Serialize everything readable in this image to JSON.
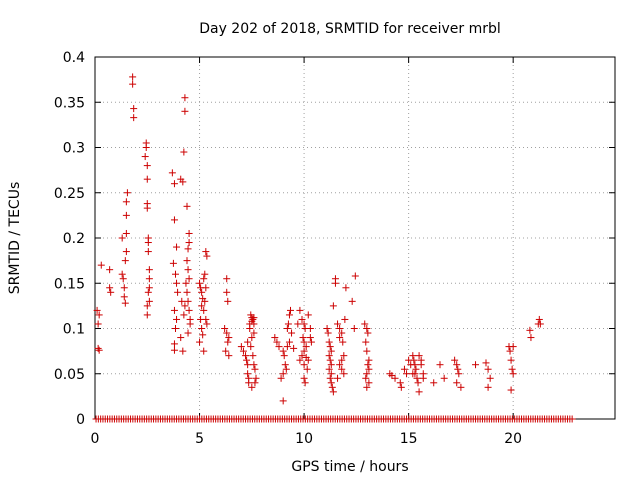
{
  "chart_data": {
    "type": "scatter",
    "title": "Day 202 of 2018, SRMTID for receiver mrbl",
    "xlabel": "GPS time / hours",
    "ylabel": "SRMTID / TECUs",
    "xlim": [
      0,
      24.87
    ],
    "ylim": [
      0,
      0.4
    ],
    "xticks": [
      0,
      5,
      10,
      15,
      20
    ],
    "xtick_labels": [
      "0",
      "5",
      "10",
      "15",
      "20"
    ],
    "yticks": [
      0,
      0.05,
      0.1,
      0.15,
      0.2,
      0.25,
      0.3,
      0.35,
      0.4
    ],
    "ytick_labels": [
      "0",
      "0.05",
      "0.1",
      "0.15",
      "0.2",
      "0.25",
      "0.3",
      "0.35",
      "0.4"
    ],
    "grid": true,
    "marker": "+",
    "color": "#cc0000",
    "series": [
      {
        "name": "SRMTID",
        "points": [
          [
            0.1,
            0.12
          ],
          [
            0.15,
            0.105
          ],
          [
            0.2,
            0.115
          ],
          [
            0.15,
            0.078
          ],
          [
            0.2,
            0.076
          ],
          [
            0.3,
            0.17
          ],
          [
            0.7,
            0.165
          ],
          [
            0.7,
            0.145
          ],
          [
            0.75,
            0.14
          ],
          [
            1.3,
            0.2
          ],
          [
            1.3,
            0.16
          ],
          [
            1.35,
            0.155
          ],
          [
            1.4,
            0.145
          ],
          [
            1.4,
            0.135
          ],
          [
            1.45,
            0.128
          ],
          [
            1.45,
            0.175
          ],
          [
            1.5,
            0.185
          ],
          [
            1.5,
            0.205
          ],
          [
            1.5,
            0.225
          ],
          [
            1.5,
            0.24
          ],
          [
            1.55,
            0.25
          ],
          [
            1.8,
            0.378
          ],
          [
            1.8,
            0.37
          ],
          [
            1.85,
            0.343
          ],
          [
            1.85,
            0.333
          ],
          [
            2.4,
            0.29
          ],
          [
            2.45,
            0.3
          ],
          [
            2.45,
            0.305
          ],
          [
            2.5,
            0.28
          ],
          [
            2.5,
            0.265
          ],
          [
            2.5,
            0.238
          ],
          [
            2.5,
            0.233
          ],
          [
            2.55,
            0.2
          ],
          [
            2.55,
            0.195
          ],
          [
            2.55,
            0.185
          ],
          [
            2.6,
            0.165
          ],
          [
            2.6,
            0.155
          ],
          [
            2.6,
            0.145
          ],
          [
            2.55,
            0.14
          ],
          [
            2.5,
            0.125
          ],
          [
            2.5,
            0.115
          ],
          [
            2.6,
            0.13
          ],
          [
            3.7,
            0.272
          ],
          [
            3.8,
            0.26
          ],
          [
            3.8,
            0.22
          ],
          [
            3.9,
            0.19
          ],
          [
            3.75,
            0.172
          ],
          [
            3.85,
            0.16
          ],
          [
            3.9,
            0.15
          ],
          [
            3.95,
            0.14
          ],
          [
            3.8,
            0.12
          ],
          [
            3.9,
            0.11
          ],
          [
            3.85,
            0.1
          ],
          [
            3.8,
            0.083
          ],
          [
            3.8,
            0.076
          ],
          [
            4.1,
            0.265
          ],
          [
            4.15,
            0.13
          ],
          [
            4.1,
            0.09
          ],
          [
            4.2,
            0.075
          ],
          [
            4.3,
            0.355
          ],
          [
            4.3,
            0.34
          ],
          [
            4.25,
            0.295
          ],
          [
            4.2,
            0.262
          ],
          [
            4.4,
            0.235
          ],
          [
            4.5,
            0.205
          ],
          [
            4.5,
            0.195
          ],
          [
            4.45,
            0.188
          ],
          [
            4.4,
            0.175
          ],
          [
            4.45,
            0.165
          ],
          [
            4.5,
            0.155
          ],
          [
            4.35,
            0.15
          ],
          [
            4.4,
            0.14
          ],
          [
            4.45,
            0.13
          ],
          [
            4.5,
            0.12
          ],
          [
            4.55,
            0.11
          ],
          [
            4.55,
            0.105
          ],
          [
            4.45,
            0.095
          ],
          [
            4.3,
            0.125
          ],
          [
            4.25,
            0.115
          ],
          [
            5.0,
            0.15
          ],
          [
            5.05,
            0.145
          ],
          [
            5.1,
            0.14
          ],
          [
            5.15,
            0.133
          ],
          [
            5.1,
            0.125
          ],
          [
            5.2,
            0.12
          ],
          [
            5.05,
            0.11
          ],
          [
            5.1,
            0.1
          ],
          [
            5.15,
            0.093
          ],
          [
            5.0,
            0.085
          ],
          [
            5.2,
            0.155
          ],
          [
            5.25,
            0.16
          ],
          [
            5.3,
            0.185
          ],
          [
            5.35,
            0.18
          ],
          [
            5.3,
            0.145
          ],
          [
            5.25,
            0.13
          ],
          [
            5.3,
            0.11
          ],
          [
            5.35,
            0.105
          ],
          [
            5.2,
            0.075
          ],
          [
            6.3,
            0.155
          ],
          [
            6.3,
            0.14
          ],
          [
            6.35,
            0.13
          ],
          [
            6.2,
            0.1
          ],
          [
            6.3,
            0.095
          ],
          [
            6.4,
            0.09
          ],
          [
            6.35,
            0.085
          ],
          [
            6.25,
            0.075
          ],
          [
            6.4,
            0.07
          ],
          [
            7.0,
            0.08
          ],
          [
            7.1,
            0.075
          ],
          [
            7.2,
            0.07
          ],
          [
            7.25,
            0.065
          ],
          [
            7.3,
            0.06
          ],
          [
            7.3,
            0.05
          ],
          [
            7.35,
            0.045
          ],
          [
            7.35,
            0.04
          ],
          [
            7.3,
            0.085
          ],
          [
            7.4,
            0.105
          ],
          [
            7.4,
            0.1
          ],
          [
            7.45,
            0.115
          ],
          [
            7.5,
            0.112
          ],
          [
            7.55,
            0.11
          ],
          [
            7.5,
            0.108
          ],
          [
            7.6,
            0.105
          ],
          [
            7.6,
            0.095
          ],
          [
            7.5,
            0.09
          ],
          [
            7.45,
            0.08
          ],
          [
            7.55,
            0.07
          ],
          [
            7.6,
            0.06
          ],
          [
            7.65,
            0.055
          ],
          [
            7.7,
            0.045
          ],
          [
            7.65,
            0.04
          ],
          [
            7.5,
            0.035
          ],
          [
            7.6,
            0.112
          ],
          [
            8.6,
            0.09
          ],
          [
            8.7,
            0.085
          ],
          [
            8.8,
            0.08
          ],
          [
            9.0,
            0.075
          ],
          [
            9.05,
            0.07
          ],
          [
            9.1,
            0.06
          ],
          [
            9.15,
            0.055
          ],
          [
            9.0,
            0.05
          ],
          [
            8.9,
            0.045
          ],
          [
            9.0,
            0.02
          ],
          [
            9.2,
            0.1
          ],
          [
            9.25,
            0.105
          ],
          [
            9.3,
            0.115
          ],
          [
            9.35,
            0.12
          ],
          [
            9.4,
            0.095
          ],
          [
            9.3,
            0.085
          ],
          [
            9.2,
            0.08
          ],
          [
            9.5,
            0.078
          ],
          [
            9.8,
            0.12
          ],
          [
            9.9,
            0.11
          ],
          [
            10.0,
            0.105
          ],
          [
            10.05,
            0.1
          ],
          [
            9.95,
            0.09
          ],
          [
            10.0,
            0.085
          ],
          [
            10.1,
            0.08
          ],
          [
            10.0,
            0.075
          ],
          [
            9.9,
            0.07
          ],
          [
            10.1,
            0.068
          ],
          [
            10.2,
            0.065
          ],
          [
            10.0,
            0.06
          ],
          [
            10.15,
            0.055
          ],
          [
            10.0,
            0.045
          ],
          [
            10.05,
            0.04
          ],
          [
            10.3,
            0.1
          ],
          [
            10.3,
            0.09
          ],
          [
            10.35,
            0.085
          ],
          [
            10.2,
            0.115
          ],
          [
            9.7,
            0.105
          ],
          [
            9.8,
            0.065
          ],
          [
            11.1,
            0.1
          ],
          [
            11.15,
            0.095
          ],
          [
            11.2,
            0.085
          ],
          [
            11.25,
            0.08
          ],
          [
            11.3,
            0.075
          ],
          [
            11.2,
            0.07
          ],
          [
            11.25,
            0.065
          ],
          [
            11.3,
            0.06
          ],
          [
            11.2,
            0.055
          ],
          [
            11.3,
            0.05
          ],
          [
            11.25,
            0.045
          ],
          [
            11.3,
            0.04
          ],
          [
            11.35,
            0.035
          ],
          [
            11.4,
            0.03
          ],
          [
            11.5,
            0.155
          ],
          [
            11.5,
            0.15
          ],
          [
            11.4,
            0.125
          ],
          [
            11.6,
            0.105
          ],
          [
            11.7,
            0.1
          ],
          [
            11.8,
            0.095
          ],
          [
            11.85,
            0.085
          ],
          [
            11.9,
            0.07
          ],
          [
            11.8,
            0.065
          ],
          [
            11.7,
            0.06
          ],
          [
            11.8,
            0.055
          ],
          [
            11.9,
            0.05
          ],
          [
            11.6,
            0.045
          ],
          [
            11.7,
            0.09
          ],
          [
            11.95,
            0.11
          ],
          [
            12.0,
            0.145
          ],
          [
            12.3,
            0.13
          ],
          [
            12.45,
            0.158
          ],
          [
            12.4,
            0.1
          ],
          [
            12.9,
            0.105
          ],
          [
            13.0,
            0.1
          ],
          [
            13.05,
            0.095
          ],
          [
            12.95,
            0.085
          ],
          [
            13.0,
            0.075
          ],
          [
            13.1,
            0.065
          ],
          [
            13.05,
            0.06
          ],
          [
            13.1,
            0.055
          ],
          [
            13.0,
            0.05
          ],
          [
            12.95,
            0.045
          ],
          [
            13.1,
            0.04
          ],
          [
            13.0,
            0.035
          ],
          [
            14.1,
            0.05
          ],
          [
            14.2,
            0.048
          ],
          [
            14.35,
            0.045
          ],
          [
            14.6,
            0.04
          ],
          [
            14.65,
            0.035
          ],
          [
            14.8,
            0.055
          ],
          [
            14.9,
            0.05
          ],
          [
            15.0,
            0.065
          ],
          [
            15.1,
            0.06
          ],
          [
            15.2,
            0.07
          ],
          [
            15.25,
            0.065
          ],
          [
            15.3,
            0.06
          ],
          [
            15.35,
            0.055
          ],
          [
            15.3,
            0.05
          ],
          [
            15.4,
            0.045
          ],
          [
            15.45,
            0.04
          ],
          [
            15.2,
            0.05
          ],
          [
            15.5,
            0.07
          ],
          [
            15.6,
            0.065
          ],
          [
            15.6,
            0.06
          ],
          [
            15.7,
            0.05
          ],
          [
            15.7,
            0.045
          ],
          [
            15.5,
            0.03
          ],
          [
            16.2,
            0.04
          ],
          [
            16.5,
            0.06
          ],
          [
            16.7,
            0.045
          ],
          [
            17.2,
            0.065
          ],
          [
            17.3,
            0.06
          ],
          [
            17.35,
            0.055
          ],
          [
            17.4,
            0.05
          ],
          [
            17.3,
            0.04
          ],
          [
            17.5,
            0.035
          ],
          [
            18.2,
            0.06
          ],
          [
            18.7,
            0.062
          ],
          [
            18.8,
            0.055
          ],
          [
            18.9,
            0.045
          ],
          [
            18.8,
            0.035
          ],
          [
            19.8,
            0.08
          ],
          [
            19.85,
            0.075
          ],
          [
            19.9,
            0.065
          ],
          [
            19.95,
            0.055
          ],
          [
            20.0,
            0.05
          ],
          [
            19.9,
            0.032
          ],
          [
            20.0,
            0.08
          ],
          [
            20.8,
            0.098
          ],
          [
            20.85,
            0.09
          ],
          [
            21.2,
            0.105
          ],
          [
            21.25,
            0.11
          ],
          [
            21.3,
            0.105
          ]
        ]
      }
    ]
  }
}
